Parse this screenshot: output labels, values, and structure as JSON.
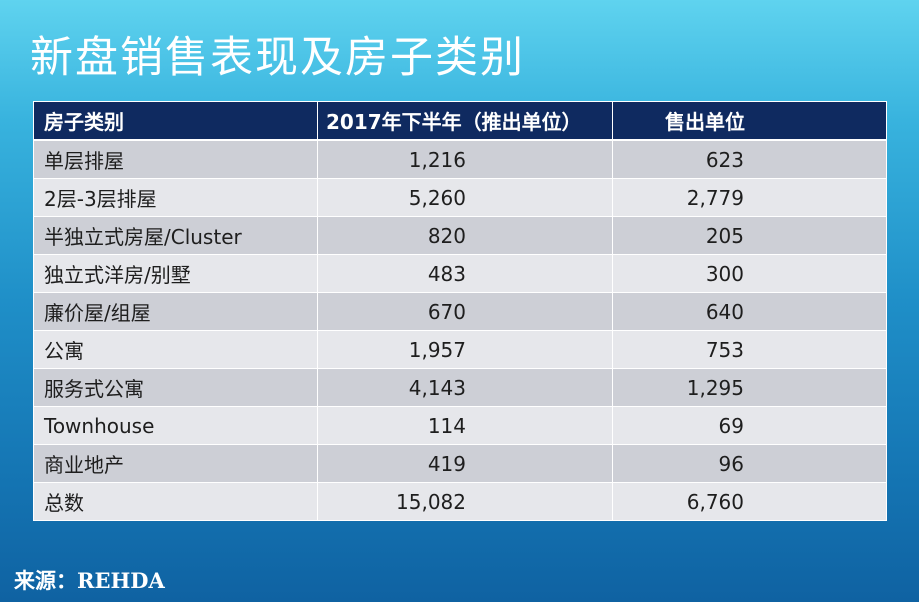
{
  "title": "新盘销售表现及房子类别",
  "table": {
    "headers": [
      "房子类别",
      "2017年下半年（推出单位）",
      "售出单位"
    ],
    "rows": [
      {
        "category": "单层排屋",
        "launched": "1,216",
        "sold": "623"
      },
      {
        "category": "2层-3层排屋",
        "launched": "5,260",
        "sold": "2,779"
      },
      {
        "category": "半独立式房屋/Cluster",
        "launched": "820",
        "sold": "205"
      },
      {
        "category": "独立式洋房/别墅",
        "launched": "483",
        "sold": "300"
      },
      {
        "category": "廉价屋/组屋",
        "launched": "670",
        "sold": "640"
      },
      {
        "category": "公寓",
        "launched": "1,957",
        "sold": "753"
      },
      {
        "category": "服务式公寓",
        "launched": "4,143",
        "sold": "1,295"
      },
      {
        "category": "Townhouse",
        "launched": "114",
        "sold": "69"
      },
      {
        "category": "商业地产",
        "launched": "419",
        "sold": "96"
      },
      {
        "category": "总数",
        "launched": "15,082",
        "sold": "6,760"
      }
    ]
  },
  "source": "来源：REHDA",
  "colors": {
    "header_bg": "#0f2a60",
    "row_odd": "#cdcfd6",
    "row_even": "#e6e7eb",
    "text": "#1e1e1e",
    "title": "#ffffff"
  }
}
